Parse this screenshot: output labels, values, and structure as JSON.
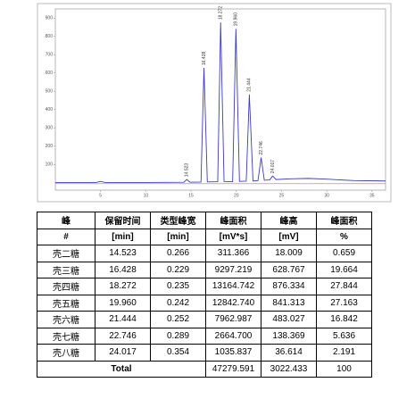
{
  "chart_data": {
    "type": "line",
    "x": [
      0,
      4.5,
      5,
      5.5,
      10,
      14.2,
      14.523,
      14.9,
      16.1,
      16.428,
      16.8,
      17.95,
      18.272,
      18.65,
      19.6,
      19.96,
      20.35,
      21.1,
      21.444,
      21.85,
      22.4,
      22.746,
      23.1,
      23.7,
      24.017,
      24.4,
      26,
      28,
      30,
      33,
      36.5
    ],
    "values": [
      2,
      2,
      8,
      2,
      2,
      3,
      18,
      3,
      4,
      628,
      5,
      6,
      876,
      7,
      6,
      841,
      8,
      9,
      483,
      10,
      12,
      138,
      14,
      16,
      37,
      18,
      22,
      24,
      20,
      12,
      10
    ],
    "color": "#3a3ac8",
    "xlim": [
      0,
      36.5
    ],
    "xticks": [
      5,
      10,
      15,
      20,
      25,
      30,
      35
    ],
    "ylim": [
      -40,
      950
    ],
    "yticks": [
      100,
      200,
      300,
      400,
      500,
      600,
      700,
      800,
      900
    ]
  },
  "table": {
    "header": [
      [
        "峰",
        "保留时间",
        "类型峰宽",
        "峰面积",
        "峰高",
        "峰面积"
      ],
      [
        "#",
        "[min]",
        "[min]",
        "[mV*s]",
        "[mV]",
        "%"
      ]
    ],
    "rows": [
      [
        "壳二糖",
        "14.523",
        "0.266",
        "311.366",
        "18.009",
        "0.659"
      ],
      [
        "壳三糖",
        "16.428",
        "0.229",
        "9297.219",
        "628.767",
        "19.664"
      ],
      [
        "壳四糖",
        "18.272",
        "0.235",
        "13164.742",
        "876.334",
        "27.844"
      ],
      [
        "壳五糖",
        "19.960",
        "0.242",
        "12842.740",
        "841.313",
        "27.163"
      ],
      [
        "壳六糖",
        "21.444",
        "0.252",
        "7962.987",
        "483.027",
        "16.842"
      ],
      [
        "壳七糖",
        "22.746",
        "0.289",
        "2664.700",
        "138.369",
        "5.636"
      ],
      [
        "壳八糖",
        "24.017",
        "0.354",
        "1035.837",
        "36.614",
        "2.191"
      ]
    ],
    "total": {
      "label": "Total",
      "values": [
        "47279.591",
        "3022.433",
        "100"
      ]
    }
  }
}
